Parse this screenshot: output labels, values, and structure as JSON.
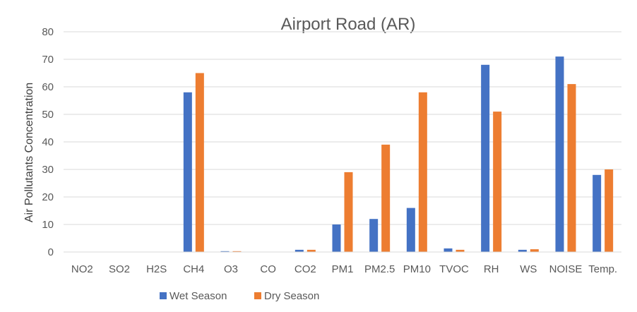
{
  "chart_data": {
    "type": "bar",
    "title": "Airport Road (AR)",
    "xlabel": "",
    "ylabel": "Air Pollutants Concentration",
    "ylim": [
      0,
      80
    ],
    "yticks": [
      0,
      10,
      20,
      30,
      40,
      50,
      60,
      70,
      80
    ],
    "grid": true,
    "legend_position": "bottom",
    "categories": [
      "NO2",
      "SO2",
      "H2S",
      "CH4",
      "O3",
      "CO",
      "CO2",
      "PM1",
      "PM2.5",
      "PM10",
      "TVOC",
      "RH",
      "WS",
      "NOISE",
      "Temp."
    ],
    "series": [
      {
        "name": "Wet Season",
        "color": "#4472C4",
        "values": [
          0,
          0,
          0,
          58,
          0.3,
          0,
          0.8,
          10,
          12,
          16,
          1.3,
          68,
          0.8,
          71,
          28
        ]
      },
      {
        "name": "Dry Season",
        "color": "#ED7D31",
        "values": [
          0,
          0,
          0,
          65,
          0.3,
          0,
          0.8,
          29,
          39,
          58,
          0.8,
          51,
          1,
          61,
          30
        ]
      }
    ]
  }
}
